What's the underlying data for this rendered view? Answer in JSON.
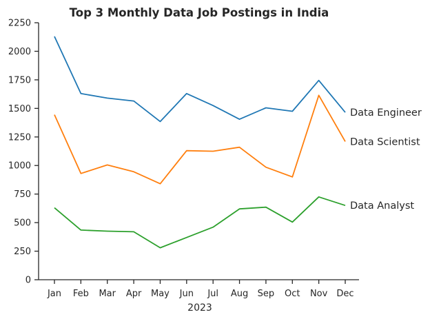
{
  "chart_data": {
    "type": "line",
    "title": "Top 3 Monthly Data Job Postings in India",
    "xlabel": "2023",
    "ylabel": "",
    "categories": [
      "Jan",
      "Feb",
      "Mar",
      "Apr",
      "May",
      "Jun",
      "Jul",
      "Aug",
      "Sep",
      "Oct",
      "Nov",
      "Dec"
    ],
    "ylim": [
      0,
      2250
    ],
    "yticks": [
      0,
      250,
      500,
      750,
      1000,
      1250,
      1500,
      1750,
      2000,
      2250
    ],
    "grid": false,
    "legend": "none",
    "series": [
      {
        "name": "Data Engineer",
        "color": "#1f77b4",
        "values": [
          2130,
          1630,
          1590,
          1565,
          1385,
          1630,
          1525,
          1405,
          1505,
          1475,
          1745,
          1465
        ]
      },
      {
        "name": "Data Scientist",
        "color": "#ff7f0e",
        "values": [
          1445,
          930,
          1005,
          945,
          840,
          1130,
          1125,
          1160,
          985,
          900,
          1615,
          1210
        ]
      },
      {
        "name": "Data Analyst",
        "color": "#2ca02c",
        "values": [
          630,
          435,
          425,
          420,
          280,
          370,
          460,
          620,
          635,
          505,
          725,
          650
        ]
      }
    ]
  }
}
